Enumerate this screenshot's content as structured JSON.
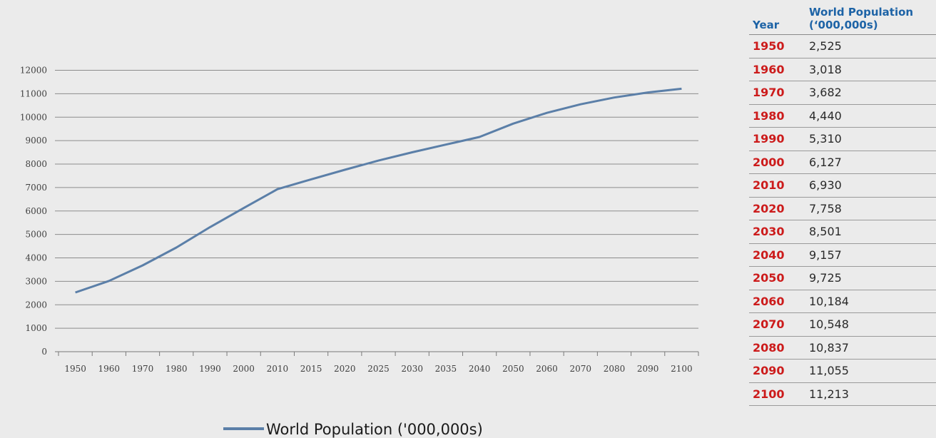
{
  "chart_data": {
    "type": "line",
    "categories": [
      "1950",
      "1960",
      "1970",
      "1980",
      "1990",
      "2000",
      "2010",
      "2015",
      "2020",
      "2025",
      "2030",
      "2035",
      "2040",
      "2050",
      "2060",
      "2070",
      "2080",
      "2090",
      "2100"
    ],
    "series": [
      {
        "name": "World Population ('000,000s)",
        "values": [
          2525,
          3018,
          3682,
          4440,
          5310,
          6127,
          6930,
          7350,
          7758,
          8150,
          8501,
          8830,
          9157,
          9725,
          10184,
          10548,
          10837,
          11055,
          11213
        ]
      }
    ],
    "ylim": [
      0,
      12000
    ],
    "yticks": [
      0,
      1000,
      2000,
      3000,
      4000,
      5000,
      6000,
      7000,
      8000,
      9000,
      10000,
      11000,
      12000
    ],
    "grid": true,
    "legend": "bottom",
    "line_color": "#5b7fa8"
  },
  "table": {
    "headers": {
      "year": "Year",
      "population_line1": "World Population",
      "population_line2": "(‘000,000s)"
    },
    "rows": [
      {
        "year": "1950",
        "value": "2,525"
      },
      {
        "year": "1960",
        "value": "3,018"
      },
      {
        "year": "1970",
        "value": "3,682"
      },
      {
        "year": "1980",
        "value": "4,440"
      },
      {
        "year": "1990",
        "value": "5,310"
      },
      {
        "year": "2000",
        "value": "6,127"
      },
      {
        "year": "2010",
        "value": "6,930"
      },
      {
        "year": "2020",
        "value": "7,758"
      },
      {
        "year": "2030",
        "value": "8,501"
      },
      {
        "year": "2040",
        "value": "9,157"
      },
      {
        "year": "2050",
        "value": "9,725"
      },
      {
        "year": "2060",
        "value": "10,184"
      },
      {
        "year": "2070",
        "value": "10,548"
      },
      {
        "year": "2080",
        "value": "10,837"
      },
      {
        "year": "2090",
        "value": "11,055"
      },
      {
        "year": "2100",
        "value": "11,213"
      }
    ],
    "colors": {
      "header": "#1d63a6",
      "year": "#cc1b1b"
    }
  }
}
